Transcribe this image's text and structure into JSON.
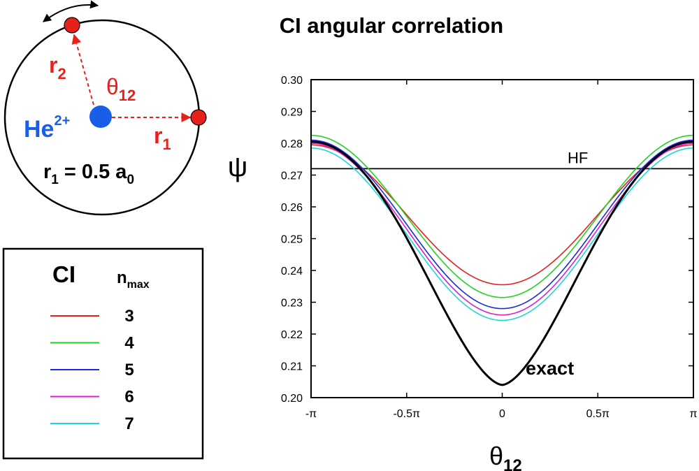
{
  "chart_data": {
    "type": "line",
    "title": "CI angular correlation",
    "xlabel": "θ",
    "xlabel_sub": "12",
    "ylabel": "ψ",
    "xlim": [
      -3.14159,
      3.14159
    ],
    "ylim": [
      0.2,
      0.3
    ],
    "x_ticks": [
      {
        "value": -3.14159,
        "label": "-π"
      },
      {
        "value": -1.5708,
        "label": "-0.5π"
      },
      {
        "value": 0,
        "label": "0"
      },
      {
        "value": 1.5708,
        "label": "0.5π"
      },
      {
        "value": 3.14159,
        "label": "π"
      }
    ],
    "y_ticks": [
      "0.20",
      "0.21",
      "0.22",
      "0.23",
      "0.24",
      "0.25",
      "0.26",
      "0.27",
      "0.28",
      "0.29",
      "0.30"
    ],
    "grid": false,
    "reference_line": {
      "label": "HF",
      "value": 0.272,
      "color": "#000000"
    },
    "exact_curve": {
      "label": "exact",
      "min": 0.204,
      "max": 0.2805,
      "color": "#000000"
    },
    "series": [
      {
        "name": "3",
        "color": "#e8201a",
        "min": 0.2355,
        "max": 0.2795
      },
      {
        "name": "4",
        "color": "#1fd41f",
        "min": 0.2315,
        "max": 0.2825
      },
      {
        "name": "5",
        "color": "#1a2ae0",
        "min": 0.228,
        "max": 0.281
      },
      {
        "name": "6",
        "color": "#d61fd6",
        "min": 0.226,
        "max": 0.28
      },
      {
        "name": "7",
        "color": "#1fd6d6",
        "min": 0.2243,
        "max": 0.2785
      }
    ],
    "legend": {
      "title": "CI",
      "header": "n",
      "header_sub": "max",
      "placement": "left"
    }
  },
  "diagram": {
    "r2_label": "r",
    "r2_sub": "2",
    "theta_label": "θ",
    "theta_sub": "12",
    "nucleus_label": "He",
    "nucleus_sup": "2+",
    "r1_label": "r",
    "r1_sub": "1",
    "radius_text": "r",
    "radius_sub1": "1",
    "radius_value": " = 0.5 a",
    "radius_sub2": "0"
  },
  "colors": {
    "electron": "#e8201a",
    "nucleus": "#1a5ee8",
    "label_red": "#e8201a"
  }
}
